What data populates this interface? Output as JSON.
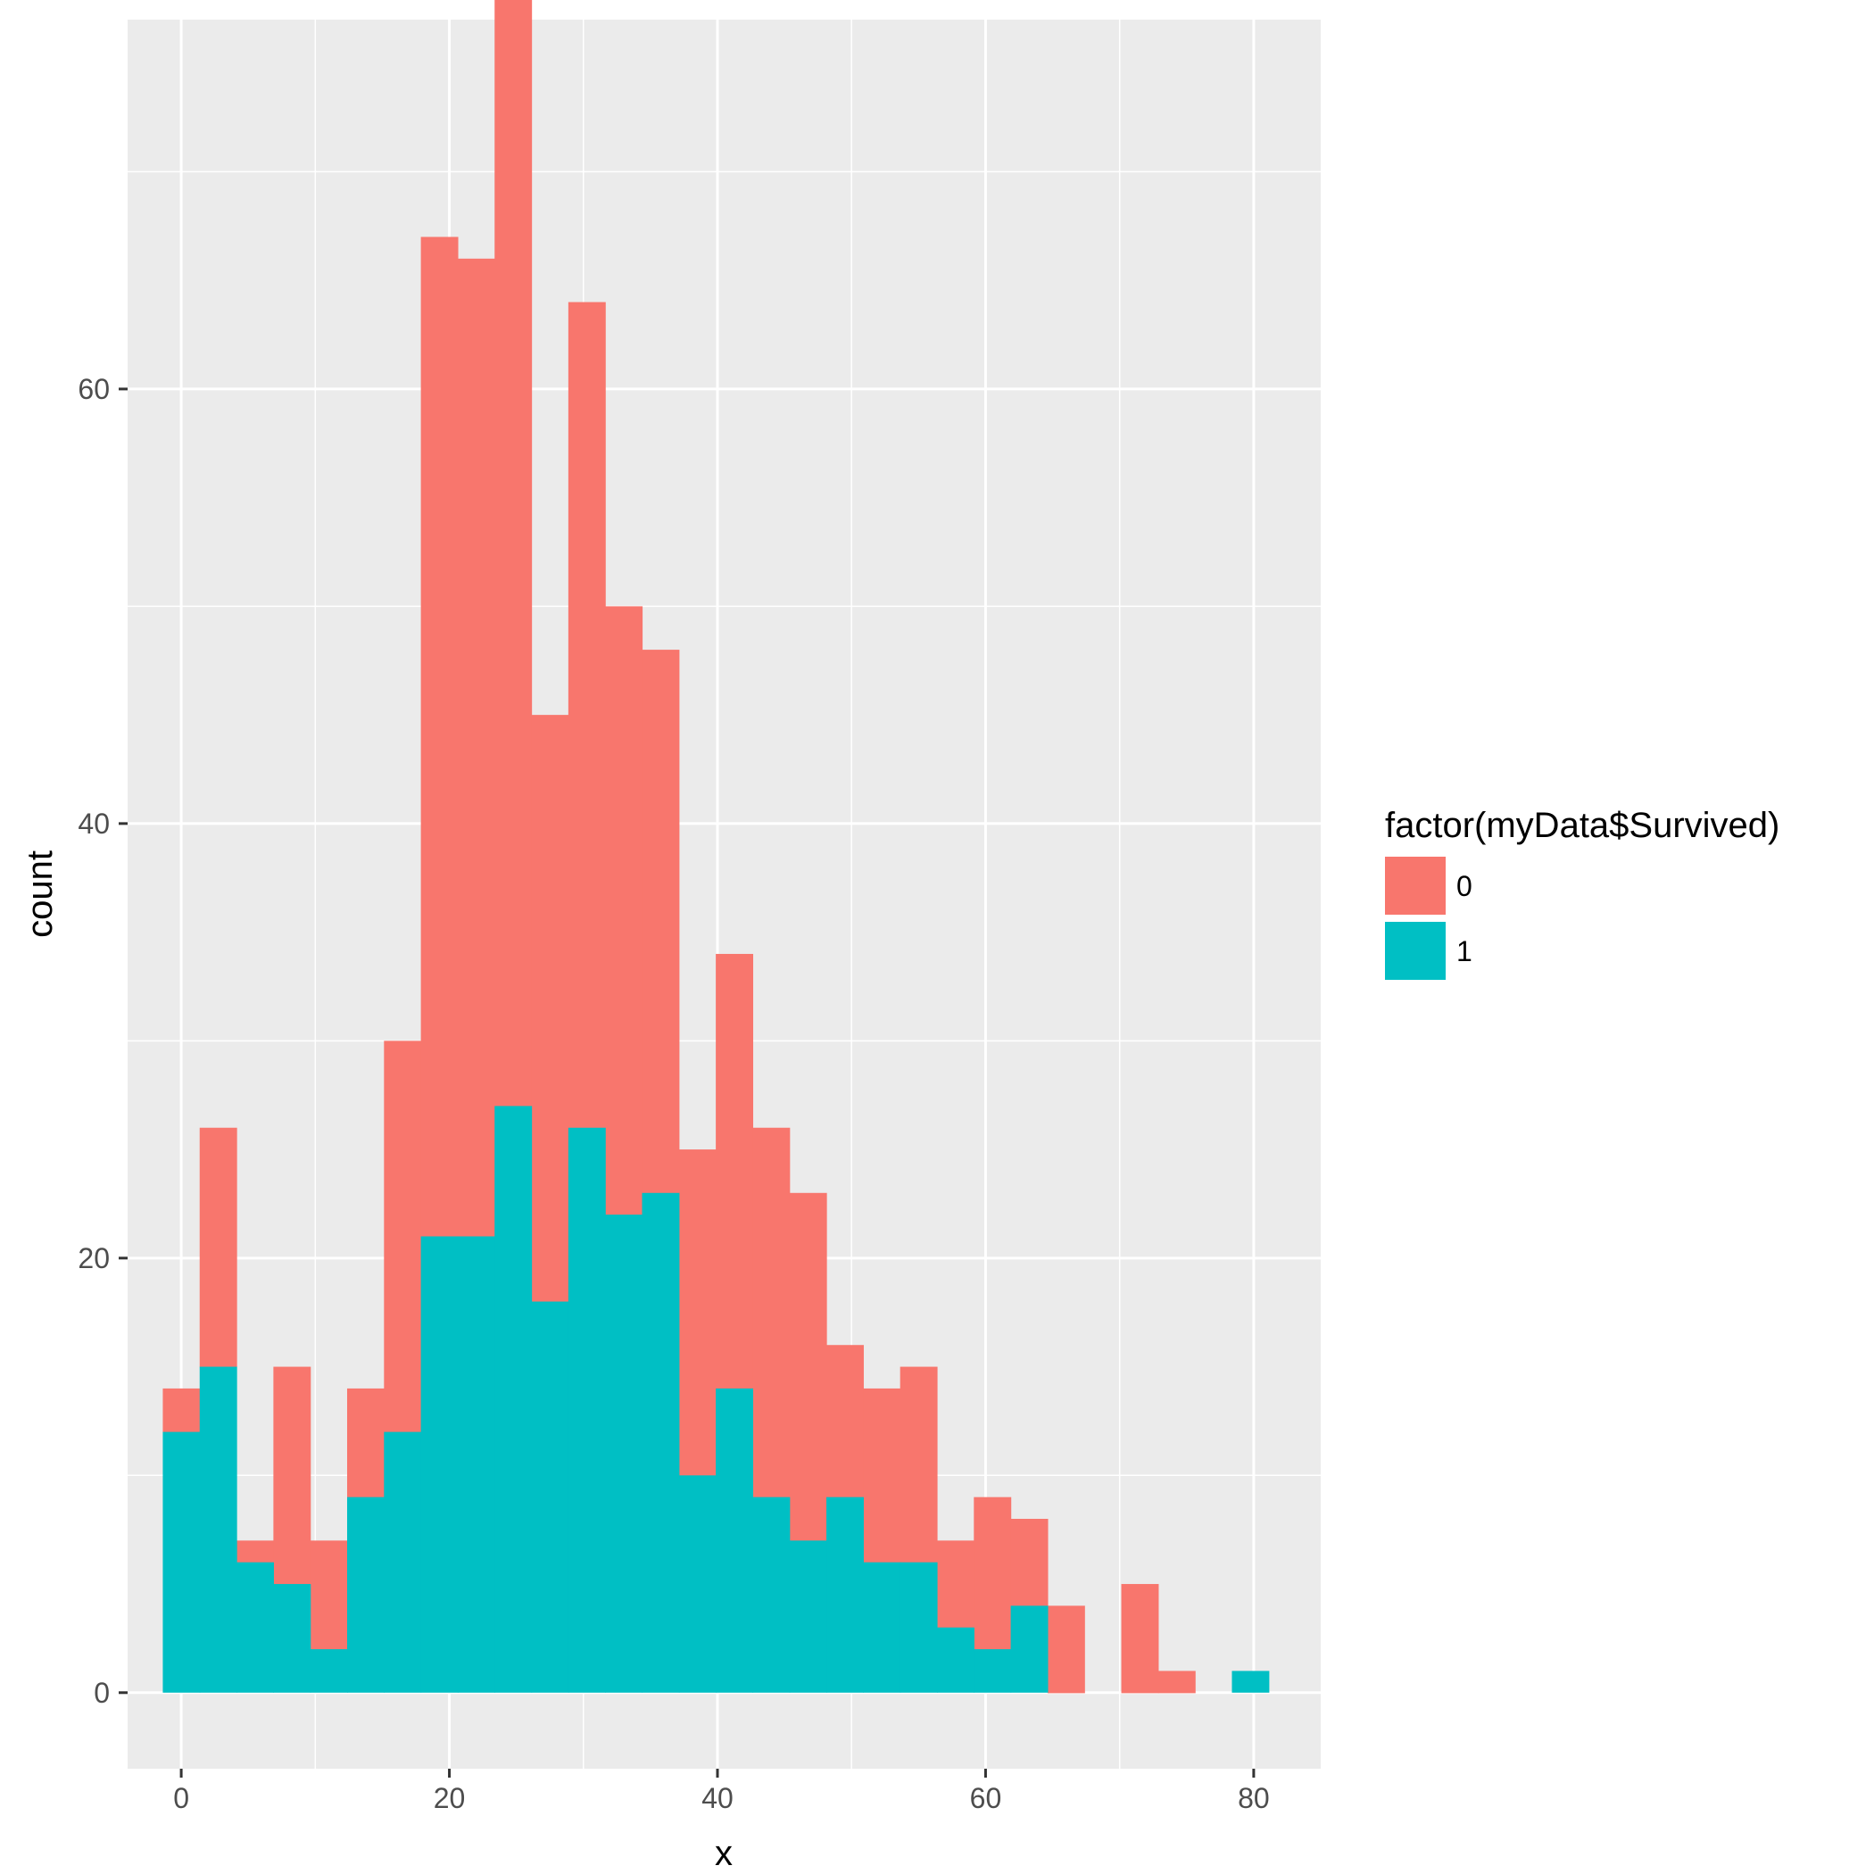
{
  "chart_data": {
    "type": "bar",
    "stacked": true,
    "title": "",
    "xlabel": "x",
    "ylabel": "count",
    "xlim": [
      -4,
      85
    ],
    "ylim": [
      -3.5,
      77
    ],
    "x_ticks": [
      0,
      20,
      40,
      60,
      80
    ],
    "y_ticks": [
      0,
      20,
      40,
      60
    ],
    "grid": true,
    "legend": {
      "title": "factor(myData$Survived)",
      "position": "right",
      "entries": [
        {
          "label": "0",
          "color": "#F8766D"
        },
        {
          "label": "1",
          "color": "#00BFC4"
        }
      ]
    },
    "bin_width": 2.75,
    "bin_centers": [
      0,
      2.75,
      5.5,
      8.25,
      11,
      13.75,
      16.5,
      19.25,
      22,
      24.75,
      27.5,
      30.25,
      33,
      35.75,
      38.5,
      41.25,
      44,
      46.75,
      49.5,
      52.25,
      55,
      57.75,
      60.5,
      63.25,
      66,
      68.75,
      71.5,
      74.25,
      77,
      79.75
    ],
    "series": [
      {
        "name": "0",
        "color": "#F8766D",
        "values": [
          2,
          11,
          1,
          10,
          5,
          5,
          18,
          46,
          45,
          52,
          27,
          38,
          28,
          25,
          15,
          20,
          17,
          16,
          7,
          8,
          9,
          4,
          7,
          4,
          4,
          0,
          5,
          1,
          0,
          0
        ]
      },
      {
        "name": "1",
        "color": "#00BFC4",
        "values": [
          12,
          15,
          6,
          5,
          2,
          9,
          12,
          21,
          21,
          27,
          18,
          26,
          22,
          23,
          10,
          14,
          9,
          7,
          9,
          6,
          6,
          3,
          2,
          4,
          0,
          0,
          0,
          0,
          0,
          1
        ]
      }
    ]
  }
}
